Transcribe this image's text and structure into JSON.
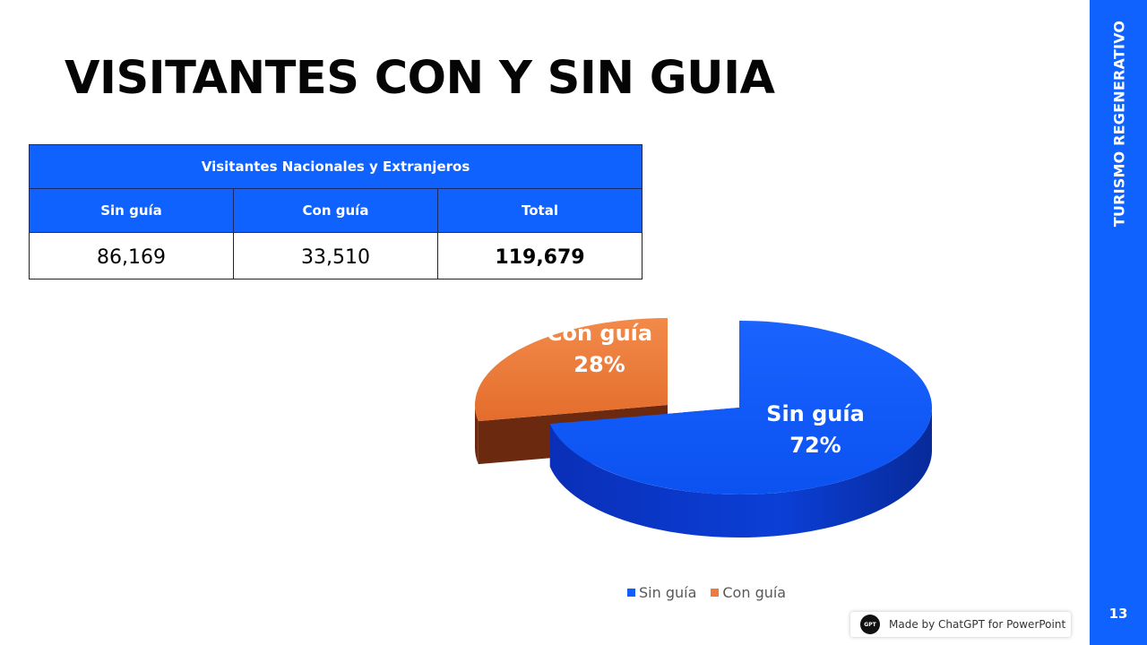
{
  "title": "VISITANTES CON Y SIN GUIA",
  "side_label": "TURISMO REGENERATIVO",
  "page_number": "13",
  "table": {
    "header": "Visitantes Nacionales y Extranjeros",
    "columns": [
      "Sin guía",
      "Con guía",
      "Total"
    ],
    "values": [
      "86,169",
      "33,510",
      "119,679"
    ]
  },
  "colors": {
    "accent": "#0f62fe",
    "sin_guia": "#0f5fff",
    "con_guia": "#ee7b3c"
  },
  "chart_data": {
    "type": "pie",
    "series": [
      {
        "label": "Sin guía",
        "value": 72,
        "value_label": "72%"
      },
      {
        "label": "Con guía",
        "value": 28,
        "value_label": "28%"
      }
    ],
    "legend": {
      "position": "bottom",
      "entries": [
        "Sin guía",
        "Con guía"
      ]
    }
  },
  "badge": {
    "logo_text": "GPT",
    "text": "Made by ChatGPT for PowerPoint"
  }
}
